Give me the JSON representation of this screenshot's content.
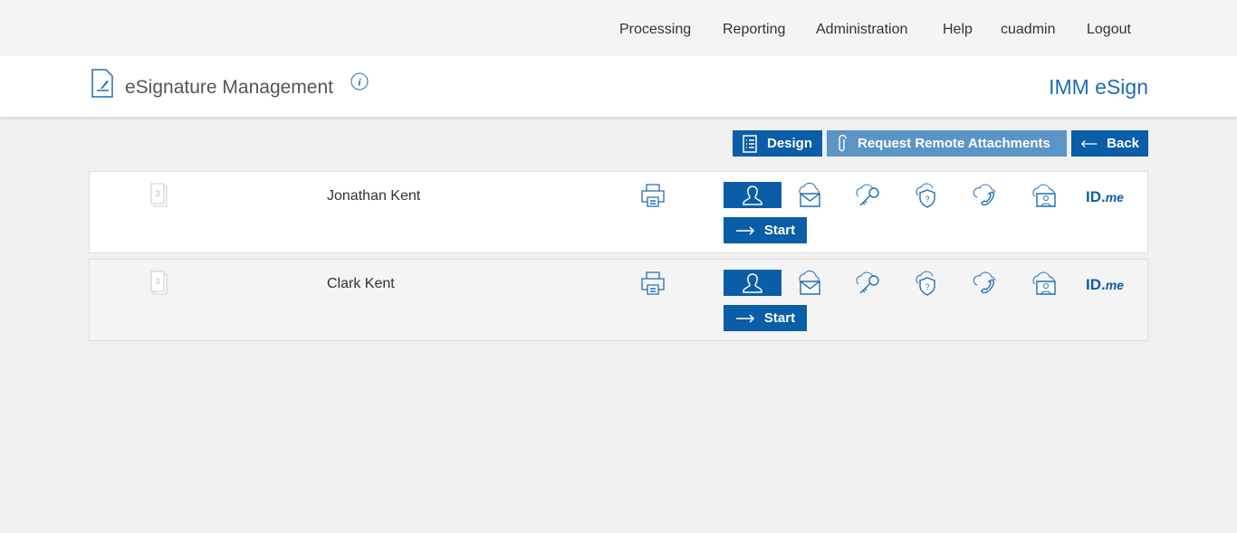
{
  "nav": {
    "items": [
      "Processing",
      "Reporting",
      "Administration",
      "Help",
      "cuadmin",
      "Logout"
    ]
  },
  "header": {
    "title": "eSignature Management",
    "brand": "IMM eSign"
  },
  "toolbar": {
    "design": "Design",
    "request": "Request Remote Attachments",
    "back": "Back"
  },
  "rows": [
    {
      "count": "3",
      "name": "Jonathan Kent",
      "start": "Start",
      "idme_a": "ID.",
      "idme_b": "me"
    },
    {
      "count": "3",
      "name": "Clark Kent",
      "start": "Start",
      "idme_a": "ID.",
      "idme_b": "me"
    }
  ],
  "colors": {
    "primary": "#0a5ea8",
    "disabled": "#5a95c6"
  }
}
